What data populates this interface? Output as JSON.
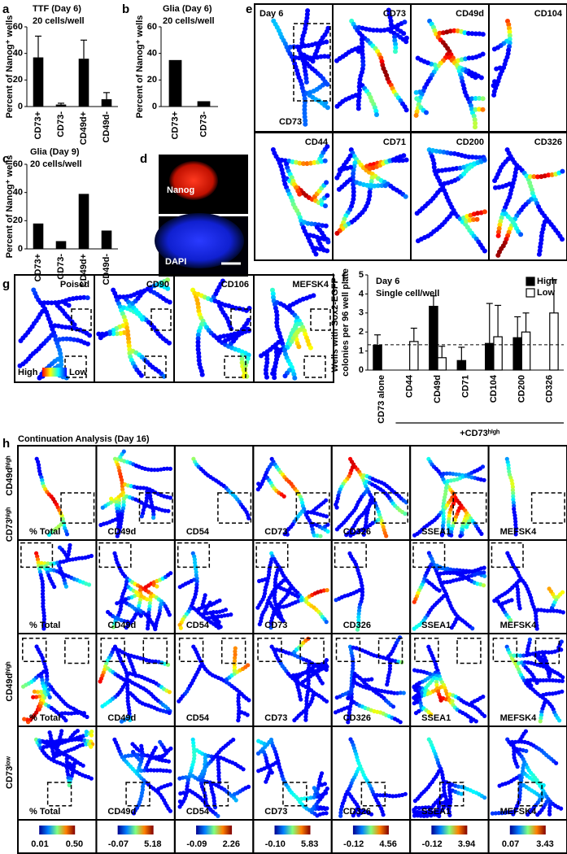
{
  "panel_letters": [
    "a",
    "b",
    "c",
    "d",
    "e",
    "f",
    "g",
    "h"
  ],
  "chart_data": [
    {
      "type": "bar",
      "title": "TTF (Day 6)",
      "subtitle": "20 cells/well",
      "y_label": [
        "Percent of Nanog⁺ wells"
      ],
      "categories": [
        "CD73+",
        "CD73-",
        "CD49d+",
        "CD49d-"
      ],
      "values": [
        37,
        1.5,
        36,
        5.5
      ],
      "errors": [
        16,
        1,
        14,
        5
      ],
      "color": "#000000",
      "ylim": [
        0,
        60
      ],
      "yticks": [
        0,
        20,
        40,
        60
      ]
    },
    {
      "type": "bar",
      "title": "Glia (Day 6)",
      "subtitle": "20 cells/well",
      "y_label": [
        "Percent of Nanog⁺ wells"
      ],
      "categories": [
        "CD73+",
        "CD73-"
      ],
      "values": [
        35,
        4
      ],
      "color": "#000000",
      "ylim": [
        0,
        60
      ],
      "yticks": [
        0,
        20,
        40,
        60
      ]
    },
    {
      "type": "bar",
      "title": "Glia (Day 9)",
      "subtitle": "20 cells/well",
      "y_label": [
        "Percent of Nanog⁺ wells"
      ],
      "categories": [
        "CD73+",
        "CD73-",
        "CD49d+",
        "CD49d-"
      ],
      "values": [
        18,
        5.5,
        39,
        13
      ],
      "color": "#000000",
      "ylim": [
        0,
        60
      ],
      "yticks": [
        0,
        20,
        40,
        60
      ]
    },
    {
      "type": "bar",
      "title": "Day 6",
      "subtitle": "Single cell/well",
      "y_label": [
        "Wells with Sox2-EGFP⁺",
        "colonies per 96 well plate"
      ],
      "categories": [
        "CD73 alone",
        "CD44",
        "CD49d",
        "CD71",
        "CD104",
        "CD200",
        "CD326"
      ],
      "group_label": "+CD73ʰⁱᵍʰ",
      "series": [
        {
          "name": "High",
          "color": "#000000",
          "values": [
            1.3,
            null,
            3.35,
            0.5,
            1.4,
            1.7,
            null
          ],
          "errors": [
            0.55,
            null,
            0.55,
            0.7,
            2.1,
            1.1,
            null
          ]
        },
        {
          "name": "Low",
          "color": "#ffffff",
          "values": [
            null,
            1.5,
            0.65,
            null,
            1.75,
            2.0,
            3.0
          ],
          "errors": [
            null,
            0.7,
            0.6,
            null,
            1.65,
            1.0,
            1.75
          ]
        }
      ],
      "reference_line": 1.33,
      "ylim": [
        0,
        5
      ],
      "yticks": [
        0,
        1,
        2,
        3,
        4,
        5
      ],
      "legend": "upper right"
    }
  ],
  "panel_d": {
    "labels": [
      "Nanog",
      "DAPI"
    ]
  },
  "panel_e": {
    "title": "Day 6",
    "labels": [
      "CD73",
      "CD73",
      "CD49d",
      "CD104",
      "CD44",
      "CD71",
      "CD200",
      "CD326"
    ]
  },
  "panel_g": {
    "labels": [
      "Poised",
      "CD90",
      "CD106",
      "MEFSK4"
    ],
    "scale": [
      "High",
      "Low"
    ]
  },
  "panel_h": {
    "title": "Continuation Analysis (Day 16)",
    "row_labels": [
      "CD49dʰⁱᵍʰ",
      "CD73ʰⁱᵍʰ",
      "CD49dʰⁱᵍʰ",
      "CD73ˡᵒʷ"
    ],
    "columns": [
      "% Total",
      "CD49d",
      "CD54",
      "CD73",
      "CD326",
      "SSEA1",
      "MEFSK4"
    ],
    "colorbars": [
      [
        "0.01",
        "0.50"
      ],
      [
        "-0.07",
        "5.18"
      ],
      [
        "-0.09",
        "2.26"
      ],
      [
        "-0.10",
        "5.83"
      ],
      [
        "-0.12",
        "4.56"
      ],
      [
        "-0.12",
        "3.94"
      ],
      [
        "0.07",
        "3.43"
      ]
    ]
  }
}
